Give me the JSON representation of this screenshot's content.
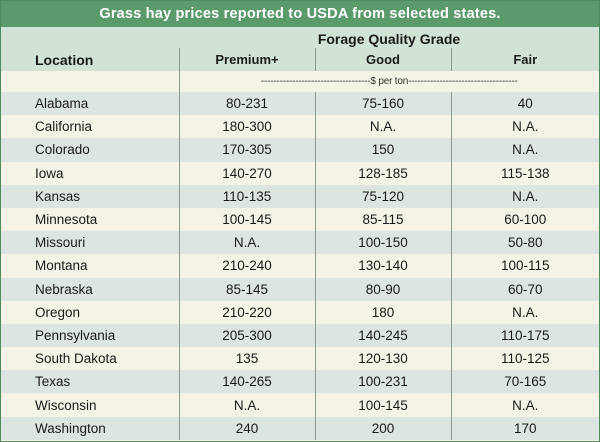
{
  "title": "Grass hay prices reported to USDA from selected states.",
  "group_header": "Forage Quality Grade",
  "columns": {
    "location": "Location",
    "premium": "Premium+",
    "good": "Good",
    "fair": "Fair"
  },
  "unit_line": "-----------------------------------$ per ton-----------------------------------",
  "rows": [
    {
      "location": "Alabama",
      "premium": "80-231",
      "good": "75-160",
      "fair": "40"
    },
    {
      "location": "California",
      "premium": "180-300",
      "good": "N.A.",
      "fair": "N.A."
    },
    {
      "location": "Colorado",
      "premium": "170-305",
      "good": "150",
      "fair": "N.A."
    },
    {
      "location": "Iowa",
      "premium": "140-270",
      "good": "128-185",
      "fair": "115-138"
    },
    {
      "location": "Kansas",
      "premium": "110-135",
      "good": "75-120",
      "fair": "N.A."
    },
    {
      "location": "Minnesota",
      "premium": "100-145",
      "good": "85-115",
      "fair": "60-100"
    },
    {
      "location": "Missouri",
      "premium": "N.A.",
      "good": "100-150",
      "fair": "50-80"
    },
    {
      "location": "Montana",
      "premium": "210-240",
      "good": "130-140",
      "fair": "100-115"
    },
    {
      "location": "Nebraska",
      "premium": "85-145",
      "good": "80-90",
      "fair": "60-70"
    },
    {
      "location": "Oregon",
      "premium": "210-220",
      "good": "180",
      "fair": "N.A."
    },
    {
      "location": "Pennsylvania",
      "premium": "205-300",
      "good": "140-245",
      "fair": "110-175"
    },
    {
      "location": "South Dakota",
      "premium": "135",
      "good": "120-130",
      "fair": "110-125"
    },
    {
      "location": "Texas",
      "premium": "140-265",
      "good": "100-231",
      "fair": "70-165"
    },
    {
      "location": "Wisconsin",
      "premium": "N.A.",
      "good": "100-145",
      "fair": "N.A."
    },
    {
      "location": "Washington",
      "premium": "240",
      "good": "200",
      "fair": "170"
    }
  ]
}
